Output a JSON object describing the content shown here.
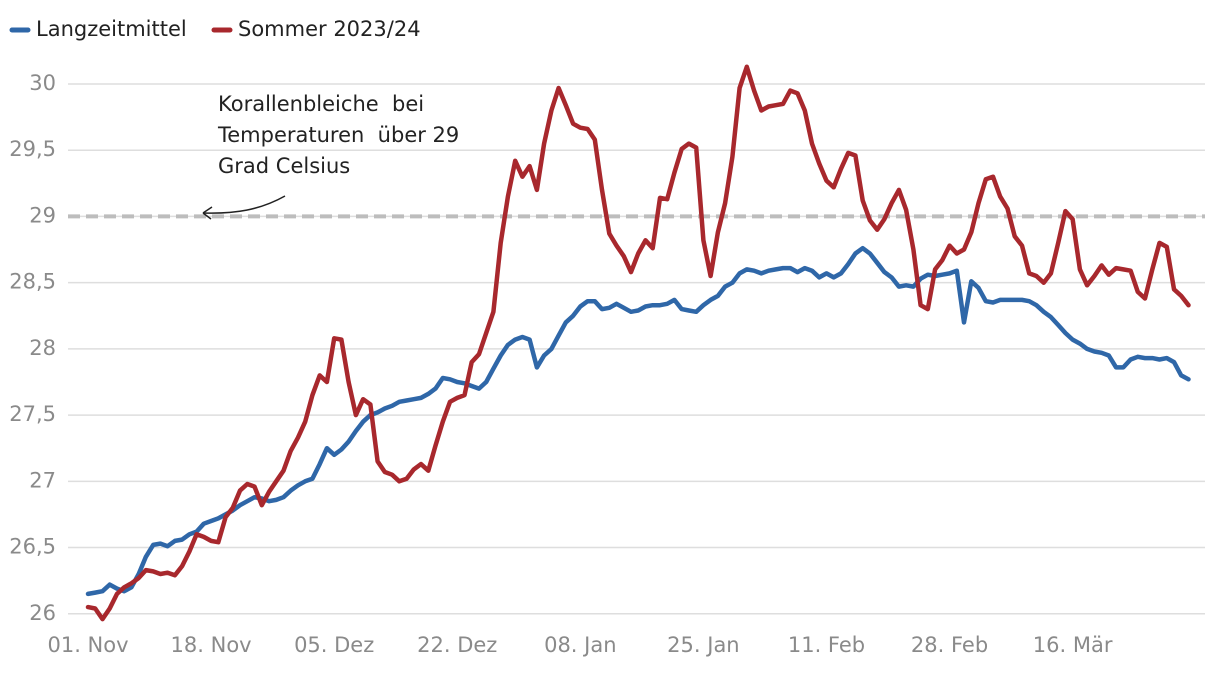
{
  "chart_data": {
    "type": "line",
    "categories": [
      "01. Nov",
      null,
      null,
      null,
      null,
      null,
      null,
      null,
      null,
      null,
      null,
      null,
      null,
      null,
      null,
      null,
      null,
      "18. Nov",
      null,
      null,
      null,
      null,
      null,
      null,
      null,
      null,
      null,
      null,
      null,
      null,
      null,
      null,
      null,
      null,
      "05. Dez",
      null,
      null,
      null,
      null,
      null,
      null,
      null,
      null,
      null,
      null,
      null,
      null,
      null,
      null,
      null,
      null,
      "22. Dez",
      null,
      null,
      null,
      null,
      null,
      null,
      null,
      null,
      null,
      null,
      null,
      null,
      null,
      null,
      null,
      null,
      "08. Jan",
      null,
      null,
      null,
      null,
      null,
      null,
      null,
      null,
      null,
      null,
      null,
      null,
      null,
      null,
      null,
      null,
      "25. Jan",
      null,
      null,
      null,
      null,
      null,
      null,
      null,
      null,
      null,
      null,
      null,
      null,
      null,
      null,
      null,
      null,
      "11. Feb",
      null,
      null,
      null,
      null,
      null,
      null,
      null,
      null,
      null,
      null,
      null,
      null,
      null,
      null,
      null,
      null,
      "28. Feb",
      null,
      null,
      null,
      null,
      null,
      null,
      null,
      null,
      null,
      null,
      null,
      null,
      null,
      null,
      null,
      null,
      "16. Mär",
      null,
      null,
      null,
      null,
      null,
      null,
      null,
      null,
      null,
      null,
      null,
      null,
      null,
      null,
      null,
      null
    ],
    "series": [
      {
        "name": "Langzeitmittel",
        "color": "#2f67a8",
        "values": [
          26.15,
          26.16,
          26.17,
          26.22,
          26.19,
          26.17,
          26.2,
          26.3,
          26.43,
          26.52,
          26.53,
          26.51,
          26.55,
          26.56,
          26.6,
          26.62,
          26.68,
          26.7,
          26.72,
          26.75,
          26.78,
          26.82,
          26.85,
          26.88,
          26.87,
          26.85,
          26.86,
          26.88,
          26.93,
          26.97,
          27.0,
          27.02,
          27.13,
          27.25,
          27.2,
          27.24,
          27.3,
          27.38,
          27.45,
          27.5,
          27.52,
          27.55,
          27.57,
          27.6,
          27.61,
          27.62,
          27.63,
          27.66,
          27.7,
          27.78,
          27.77,
          27.75,
          27.74,
          27.72,
          27.7,
          27.75,
          27.85,
          27.95,
          28.03,
          28.07,
          28.09,
          28.07,
          27.86,
          27.95,
          28.0,
          28.1,
          28.2,
          28.25,
          28.32,
          28.36,
          28.36,
          28.3,
          28.31,
          28.34,
          28.31,
          28.28,
          28.29,
          28.32,
          28.33,
          28.33,
          28.34,
          28.37,
          28.3,
          28.29,
          28.28,
          28.33,
          28.37,
          28.4,
          28.47,
          28.5,
          28.57,
          28.6,
          28.59,
          28.57,
          28.59,
          28.6,
          28.61,
          28.61,
          28.58,
          28.61,
          28.59,
          28.54,
          28.57,
          28.54,
          28.57,
          28.64,
          28.72,
          28.76,
          28.72,
          28.65,
          28.58,
          28.54,
          28.47,
          28.48,
          28.47,
          28.53,
          28.56,
          28.55,
          28.56,
          28.57,
          28.59,
          28.2,
          28.51,
          28.46,
          28.36,
          28.35,
          28.37,
          28.37,
          28.37,
          28.37,
          28.36,
          28.33,
          28.28,
          28.24,
          28.18,
          28.12,
          28.07,
          28.04,
          28.0,
          27.98,
          27.97,
          27.95,
          27.86,
          27.86,
          27.92,
          27.94,
          27.93,
          27.93,
          27.92,
          27.93,
          27.9,
          27.8,
          27.77
        ]
      },
      {
        "name": "Sommer 2023/24",
        "color": "#a8282d",
        "values": [
          26.05,
          26.04,
          25.96,
          26.04,
          26.15,
          26.2,
          26.23,
          26.27,
          26.33,
          26.32,
          26.3,
          26.31,
          26.29,
          26.36,
          26.47,
          26.6,
          26.58,
          26.55,
          26.54,
          26.73,
          26.8,
          26.93,
          26.98,
          26.96,
          26.82,
          26.92,
          27.0,
          27.08,
          27.23,
          27.33,
          27.45,
          27.65,
          27.8,
          27.75,
          28.08,
          28.07,
          27.75,
          27.5,
          27.62,
          27.58,
          27.15,
          27.07,
          27.05,
          27.0,
          27.02,
          27.09,
          27.13,
          27.08,
          27.27,
          27.45,
          27.6,
          27.63,
          27.65,
          27.9,
          27.96,
          28.12,
          28.28,
          28.8,
          29.15,
          29.42,
          29.3,
          29.38,
          29.2,
          29.55,
          29.8,
          29.97,
          29.84,
          29.7,
          29.67,
          29.66,
          29.58,
          29.2,
          28.87,
          28.78,
          28.7,
          28.58,
          28.72,
          28.82,
          28.76,
          29.14,
          29.13,
          29.33,
          29.51,
          29.55,
          29.52,
          28.82,
          28.55,
          28.88,
          29.1,
          29.45,
          29.97,
          30.13,
          29.95,
          29.8,
          29.83,
          29.84,
          29.85,
          29.95,
          29.93,
          29.8,
          29.55,
          29.4,
          29.27,
          29.22,
          29.36,
          29.48,
          29.46,
          29.12,
          28.97,
          28.9,
          28.98,
          29.1,
          29.2,
          29.05,
          28.75,
          28.33,
          28.3,
          28.6,
          28.67,
          28.78,
          28.72,
          28.75,
          28.88,
          29.1,
          29.28,
          29.3,
          29.15,
          29.06,
          28.85,
          28.78,
          28.57,
          28.55,
          28.5,
          28.57,
          28.8,
          29.04,
          28.98,
          28.6,
          28.48,
          28.55,
          28.63,
          28.56,
          28.61,
          28.6,
          28.59,
          28.43,
          28.38,
          28.6,
          28.8,
          28.77,
          28.45,
          28.4,
          28.33
        ]
      }
    ],
    "ylim": [
      25.9,
      30.2
    ],
    "yticks": [
      26,
      {
        "value": 26.5,
        "label": "26,5"
      },
      27,
      {
        "value": 27.5,
        "label": "27,5"
      },
      28,
      {
        "value": 28.5,
        "label": "28,5"
      },
      29,
      {
        "value": 29.5,
        "label": "29,5"
      },
      30
    ],
    "grid": true,
    "threshold": 29,
    "annotation": [
      "Korallenbleiche  bei",
      "Temperaturen  über 29",
      "Grad Celsius"
    ],
    "legend": "top-left"
  }
}
